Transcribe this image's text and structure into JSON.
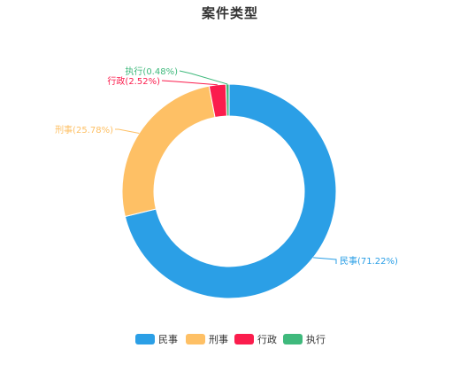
{
  "chart_data": {
    "type": "pie",
    "variant": "donut",
    "title": "案件类型",
    "categories": [
      "民事",
      "刑事",
      "行政",
      "执行"
    ],
    "values": [
      71.22,
      25.78,
      2.52,
      0.48
    ],
    "unit": "%",
    "data_labels": [
      "民事(71.22%)",
      "刑事(25.78%)",
      "行政(2.52%)",
      "执行(0.48%)"
    ],
    "colors": [
      "#2b9fe6",
      "#fec065",
      "#fb1d4d",
      "#3fb97c"
    ],
    "legend": {
      "position": "bottom",
      "entries": [
        "民事",
        "刑事",
        "行政",
        "执行"
      ]
    },
    "start_angle": "top",
    "direction": "clockwise"
  }
}
